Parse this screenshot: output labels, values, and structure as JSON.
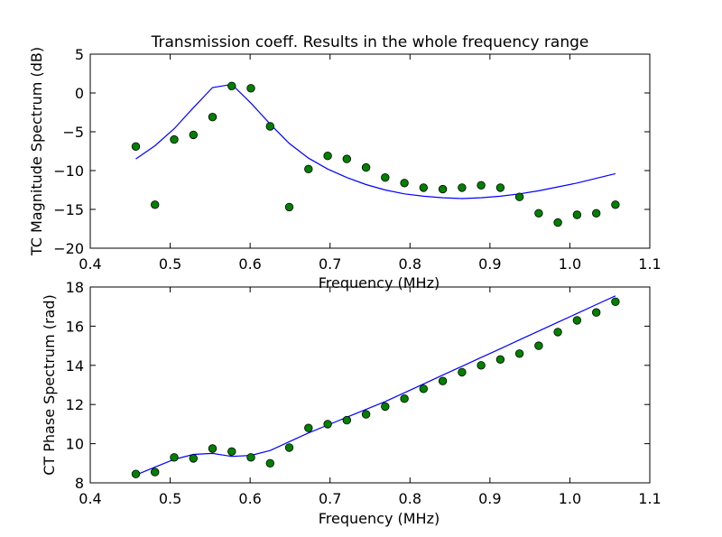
{
  "figure_title": "Transmission coeff. Results in the whole frequency range",
  "chart_data": [
    {
      "type": "line",
      "title": "Transmission coeff. Results in the whole frequency range",
      "xlabel": "Frequency (MHz)",
      "ylabel": "TC Magnitude Spectrum (dB)",
      "xlim": [
        0.4,
        1.1
      ],
      "ylim": [
        -20,
        5
      ],
      "xticks": [
        "0.4",
        "0.5",
        "0.6",
        "0.7",
        "0.8",
        "0.9",
        "1.0",
        "1.1"
      ],
      "yticks": [
        "5",
        "0",
        "−5",
        "−10",
        "−15",
        "−20"
      ],
      "grid": false,
      "legend": false,
      "series": [
        {
          "style": "line",
          "color": "#0000ff",
          "x": [
            0.457,
            0.481,
            0.505,
            0.529,
            0.553,
            0.577,
            0.601,
            0.625,
            0.649,
            0.673,
            0.697,
            0.721,
            0.745,
            0.769,
            0.793,
            0.817,
            0.841,
            0.865,
            0.889,
            0.913,
            0.937,
            0.961,
            0.985,
            1.009,
            1.033,
            1.057
          ],
          "y": [
            -8.5,
            -6.8,
            -4.6,
            -1.9,
            0.7,
            1.1,
            -1.3,
            -4.0,
            -6.5,
            -8.4,
            -9.8,
            -10.9,
            -11.8,
            -12.5,
            -13.0,
            -13.3,
            -13.5,
            -13.6,
            -13.5,
            -13.3,
            -13.0,
            -12.6,
            -12.1,
            -11.6,
            -11.0,
            -10.4
          ]
        },
        {
          "style": "markers",
          "color": "#008000",
          "x": [
            0.457,
            0.481,
            0.505,
            0.529,
            0.553,
            0.577,
            0.601,
            0.625,
            0.649,
            0.673,
            0.697,
            0.721,
            0.745,
            0.769,
            0.793,
            0.817,
            0.841,
            0.865,
            0.889,
            0.913,
            0.937,
            0.961,
            0.985,
            1.009,
            1.033,
            1.057
          ],
          "y": [
            -6.9,
            -14.4,
            -6.0,
            -5.4,
            -3.1,
            0.9,
            0.6,
            -4.3,
            -14.7,
            -9.8,
            -8.1,
            -8.5,
            -9.6,
            -10.9,
            -11.6,
            -12.2,
            -12.4,
            -12.2,
            -11.9,
            -12.2,
            -13.4,
            -15.5,
            -16.7,
            -15.7,
            -15.5,
            -14.4
          ]
        }
      ]
    },
    {
      "type": "line",
      "title": "",
      "xlabel": "Frequency (MHz)",
      "ylabel": "CT Phase Spectrum (rad)",
      "xlim": [
        0.4,
        1.1
      ],
      "ylim": [
        8,
        18
      ],
      "xticks": [
        "0.4",
        "0.5",
        "0.6",
        "0.7",
        "0.8",
        "0.9",
        "1.0",
        "1.1"
      ],
      "yticks": [
        "18",
        "16",
        "14",
        "12",
        "10",
        "8"
      ],
      "grid": false,
      "legend": false,
      "series": [
        {
          "style": "line",
          "color": "#0000ff",
          "x": [
            0.457,
            0.481,
            0.505,
            0.529,
            0.553,
            0.577,
            0.601,
            0.625,
            0.649,
            0.673,
            0.697,
            0.721,
            0.745,
            0.769,
            0.793,
            0.817,
            0.841,
            0.865,
            0.889,
            0.913,
            0.937,
            0.961,
            0.985,
            1.009,
            1.033,
            1.057
          ],
          "y": [
            8.4,
            8.8,
            9.2,
            9.45,
            9.5,
            9.35,
            9.4,
            9.65,
            10.1,
            10.55,
            10.95,
            11.35,
            11.75,
            12.15,
            12.6,
            13.05,
            13.5,
            13.95,
            14.4,
            14.85,
            15.3,
            15.75,
            16.2,
            16.65,
            17.1,
            17.55
          ]
        },
        {
          "style": "markers",
          "color": "#008000",
          "x": [
            0.457,
            0.481,
            0.505,
            0.529,
            0.553,
            0.577,
            0.601,
            0.625,
            0.649,
            0.673,
            0.697,
            0.721,
            0.745,
            0.769,
            0.793,
            0.817,
            0.841,
            0.865,
            0.889,
            0.913,
            0.937,
            0.961,
            0.985,
            1.009,
            1.033,
            1.057
          ],
          "y": [
            8.45,
            8.55,
            9.3,
            9.25,
            9.75,
            9.6,
            9.3,
            9.0,
            9.8,
            10.8,
            11.0,
            11.2,
            11.5,
            11.9,
            12.3,
            12.8,
            13.2,
            13.65,
            14.0,
            14.3,
            14.6,
            15.0,
            15.7,
            16.3,
            16.7,
            17.25
          ]
        }
      ]
    }
  ]
}
